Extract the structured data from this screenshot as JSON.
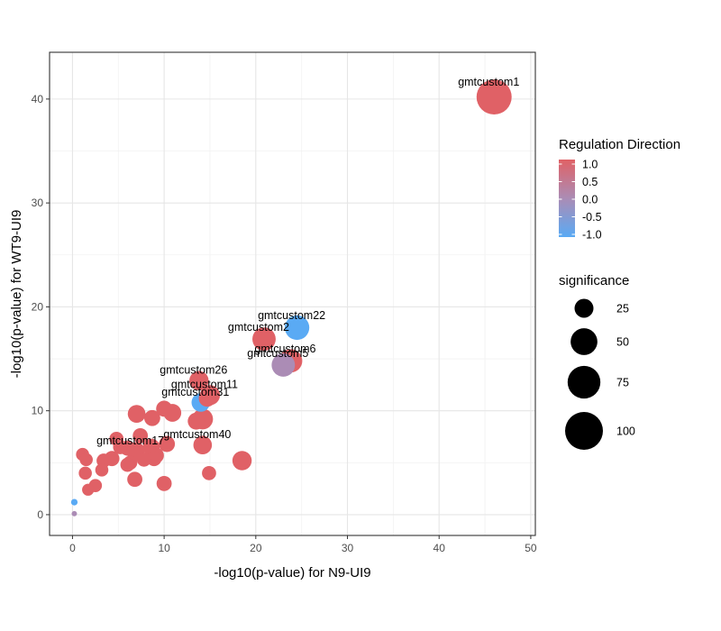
{
  "chart_data": {
    "type": "scatter",
    "xlabel": "-log10(p-value) for N9-UI9",
    "ylabel": "-log10(p-value) for WT9-UI9",
    "xlim": [
      -2.5,
      50.5
    ],
    "ylim": [
      -2,
      44.5
    ],
    "x_ticks": [
      0,
      10,
      20,
      30,
      40,
      50
    ],
    "y_ticks": [
      0,
      10,
      20,
      30,
      40
    ],
    "grid": true,
    "colors": {
      "up": "#e06166",
      "mid": "#ab8cb5",
      "down": "#5aaaf4"
    },
    "color_legend": {
      "title": "Regulation Direction",
      "labels": [
        "1.0",
        "0.5",
        "0.0",
        "-0.5",
        "-1.0"
      ]
    },
    "size_legend": {
      "title": "significance",
      "entries": [
        {
          "label": "25",
          "value": 25
        },
        {
          "label": "50",
          "value": 50
        },
        {
          "label": "75",
          "value": 75
        },
        {
          "label": "100",
          "value": 100
        }
      ]
    },
    "points": [
      {
        "x": 46.0,
        "y": 40.2,
        "sig": 86,
        "dir": 1,
        "label": "gmtcustom1"
      },
      {
        "x": 24.5,
        "y": 18.0,
        "sig": 42,
        "dir": -1,
        "label": "gmtcustom22"
      },
      {
        "x": 20.9,
        "y": 16.9,
        "sig": 38,
        "dir": 1,
        "label": "gmtcustom2"
      },
      {
        "x": 23.8,
        "y": 14.8,
        "sig": 38,
        "dir": 1,
        "label": "gmtcustom6"
      },
      {
        "x": 23.0,
        "y": 14.4,
        "sig": 38,
        "dir": 0,
        "label": "gmtcustom5"
      },
      {
        "x": 13.8,
        "y": 12.9,
        "sig": 26,
        "dir": 1,
        "label": "gmtcustom26"
      },
      {
        "x": 15.0,
        "y": 11.5,
        "sig": 28,
        "dir": 1,
        "label": "gmtcustom11"
      },
      {
        "x": 14.0,
        "y": 10.8,
        "sig": 24,
        "dir": -1,
        "label": "gmtcustom31"
      },
      {
        "x": 14.2,
        "y": 6.7,
        "sig": 24,
        "dir": 1,
        "label": "gmtcustom40"
      },
      {
        "x": 6.9,
        "y": 6.1,
        "sig": 24,
        "dir": 1,
        "label": "gmtcustom17"
      },
      {
        "x": 18.5,
        "y": 5.2,
        "sig": 26,
        "dir": 1
      },
      {
        "x": 14.2,
        "y": 9.2,
        "sig": 30,
        "dir": 1
      },
      {
        "x": 14.7,
        "y": 11.2,
        "sig": 20,
        "dir": 1
      },
      {
        "x": 10.9,
        "y": 9.8,
        "sig": 22,
        "dir": 1
      },
      {
        "x": 7.0,
        "y": 9.7,
        "sig": 22,
        "dir": 1
      },
      {
        "x": 10.0,
        "y": 10.2,
        "sig": 18,
        "dir": 1
      },
      {
        "x": 8.7,
        "y": 9.3,
        "sig": 18,
        "dir": 1
      },
      {
        "x": 13.5,
        "y": 9.0,
        "sig": 20,
        "dir": 1
      },
      {
        "x": 8.6,
        "y": 6.5,
        "sig": 20,
        "dir": 1
      },
      {
        "x": 10.3,
        "y": 6.8,
        "sig": 18,
        "dir": 1
      },
      {
        "x": 9.1,
        "y": 5.7,
        "sig": 18,
        "dir": 1
      },
      {
        "x": 7.4,
        "y": 7.6,
        "sig": 16,
        "dir": 1
      },
      {
        "x": 6.0,
        "y": 6.4,
        "sig": 16,
        "dir": 1
      },
      {
        "x": 5.2,
        "y": 6.5,
        "sig": 14,
        "dir": 1
      },
      {
        "x": 4.8,
        "y": 7.3,
        "sig": 14,
        "dir": 1
      },
      {
        "x": 4.3,
        "y": 5.4,
        "sig": 16,
        "dir": 1
      },
      {
        "x": 3.4,
        "y": 5.2,
        "sig": 14,
        "dir": 1
      },
      {
        "x": 6.3,
        "y": 5.0,
        "sig": 14,
        "dir": 1
      },
      {
        "x": 6.0,
        "y": 4.8,
        "sig": 14,
        "dir": 1
      },
      {
        "x": 7.8,
        "y": 5.3,
        "sig": 14,
        "dir": 1
      },
      {
        "x": 8.9,
        "y": 5.4,
        "sig": 16,
        "dir": 1
      },
      {
        "x": 3.2,
        "y": 4.3,
        "sig": 12,
        "dir": 1
      },
      {
        "x": 1.1,
        "y": 5.8,
        "sig": 12,
        "dir": 1
      },
      {
        "x": 1.5,
        "y": 5.3,
        "sig": 12,
        "dir": 1
      },
      {
        "x": 1.4,
        "y": 4.0,
        "sig": 12,
        "dir": 1
      },
      {
        "x": 2.5,
        "y": 2.8,
        "sig": 12,
        "dir": 1
      },
      {
        "x": 1.7,
        "y": 2.4,
        "sig": 10,
        "dir": 1
      },
      {
        "x": 6.8,
        "y": 3.4,
        "sig": 16,
        "dir": 1
      },
      {
        "x": 10.0,
        "y": 3.0,
        "sig": 16,
        "dir": 1
      },
      {
        "x": 14.9,
        "y": 4.0,
        "sig": 14,
        "dir": 1
      },
      {
        "x": 0.2,
        "y": 1.2,
        "sig": 3,
        "dir": -1
      },
      {
        "x": 0.2,
        "y": 0.1,
        "sig": 2,
        "dir": 0
      }
    ]
  }
}
